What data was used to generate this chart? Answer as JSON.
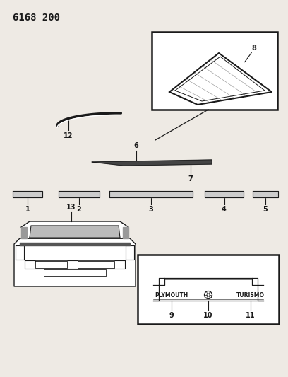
{
  "title": "6168 200",
  "bg_color": "#eeeae4",
  "line_color": "#1a1a1a",
  "parts": {
    "label_12": "12",
    "label_6": "6",
    "label_7": "7",
    "label_8": "8",
    "label_1": "1",
    "label_2": "2",
    "label_3": "3",
    "label_4": "4",
    "label_5": "5",
    "label_13": "13",
    "label_9": "9",
    "label_10": "10",
    "label_11": "11",
    "text_plymouth": "PLYMOUTH",
    "text_turismo": "TURISMO"
  }
}
